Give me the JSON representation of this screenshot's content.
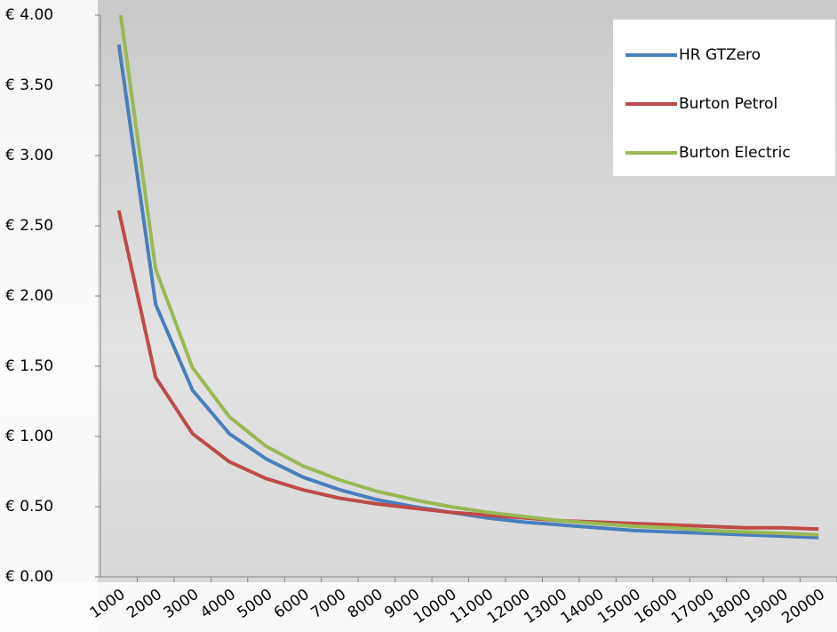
{
  "chart_data": {
    "type": "line",
    "categories": [
      "1000",
      "2000",
      "3000",
      "4000",
      "5000",
      "6000",
      "7000",
      "8000",
      "9000",
      "10000",
      "11000",
      "12000",
      "13000",
      "14000",
      "15000",
      "16000",
      "17000",
      "18000",
      "19000",
      "20000"
    ],
    "series": [
      {
        "name": "HR GTZero",
        "color": "#4a7ebb",
        "values": [
          3.79,
          1.94,
          1.33,
          1.02,
          0.84,
          0.71,
          0.62,
          0.55,
          0.5,
          0.46,
          0.42,
          0.39,
          0.37,
          0.35,
          0.33,
          0.32,
          0.31,
          0.3,
          0.29,
          0.28
        ]
      },
      {
        "name": "Burton Petrol",
        "color": "#be4b48",
        "values": [
          2.61,
          1.42,
          1.02,
          0.82,
          0.7,
          0.62,
          0.56,
          0.52,
          0.49,
          0.46,
          0.44,
          0.42,
          0.4,
          0.39,
          0.38,
          0.37,
          0.36,
          0.35,
          0.35,
          0.34
        ]
      },
      {
        "name": "Burton Electric",
        "color": "#98b954",
        "values": [
          4.1,
          2.19,
          1.49,
          1.14,
          0.93,
          0.79,
          0.69,
          0.61,
          0.55,
          0.5,
          0.46,
          0.43,
          0.4,
          0.38,
          0.36,
          0.35,
          0.33,
          0.32,
          0.31,
          0.3
        ]
      }
    ],
    "ylim": [
      0,
      4
    ],
    "yticks": [
      {
        "value": 0,
        "label": "€ 0.00"
      },
      {
        "value": 0.5,
        "label": "€ 0.50"
      },
      {
        "value": 1,
        "label": "€ 1.00"
      },
      {
        "value": 1.5,
        "label": "€ 1.50"
      },
      {
        "value": 2,
        "label": "€ 2.00"
      },
      {
        "value": 2.5,
        "label": "€ 2.50"
      },
      {
        "value": 3,
        "label": "€ 3.00"
      },
      {
        "value": 3.5,
        "label": "€ 3.50"
      },
      {
        "value": 4,
        "label": "€ 4.00"
      }
    ],
    "legend": "top-right"
  }
}
